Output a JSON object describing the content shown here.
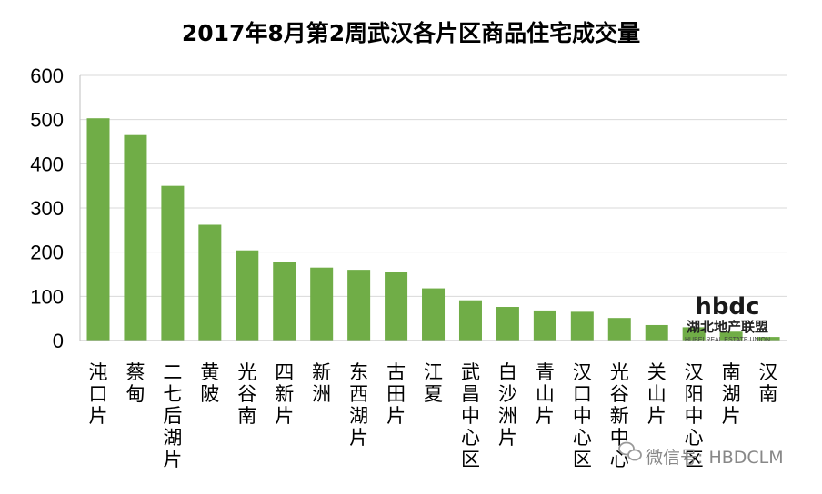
{
  "chart_data": {
    "type": "bar",
    "title": "2017年8月第2周武汉各片区商品住宅成交量",
    "xlabel": "",
    "ylabel": "",
    "ylim": [
      0,
      600
    ],
    "yticks": [
      0,
      100,
      200,
      300,
      400,
      500,
      600
    ],
    "grid": true,
    "bar_color": "#70AD47",
    "categories": [
      "沌口片",
      "蔡甸",
      "二七后湖片",
      "黄陂",
      "光谷南",
      "四新片",
      "新洲",
      "东西湖片",
      "古田片",
      "江夏",
      "武昌中心区",
      "白沙洲片",
      "青山片",
      "汉口中心区",
      "光谷新中心",
      "关山片",
      "汉阳中心区",
      "南湖片",
      "汉南"
    ],
    "values": [
      503,
      465,
      350,
      262,
      204,
      178,
      165,
      160,
      155,
      118,
      91,
      76,
      68,
      65,
      51,
      35,
      30,
      20,
      8
    ]
  },
  "watermark": {
    "logo_text": "hbdc",
    "brand": "湖北地产联盟",
    "sub": "HUBEI REAL ESTATE UNION",
    "wechat_icon": "wechat-icon",
    "wechat_label": "微信号: HBDCLM"
  }
}
